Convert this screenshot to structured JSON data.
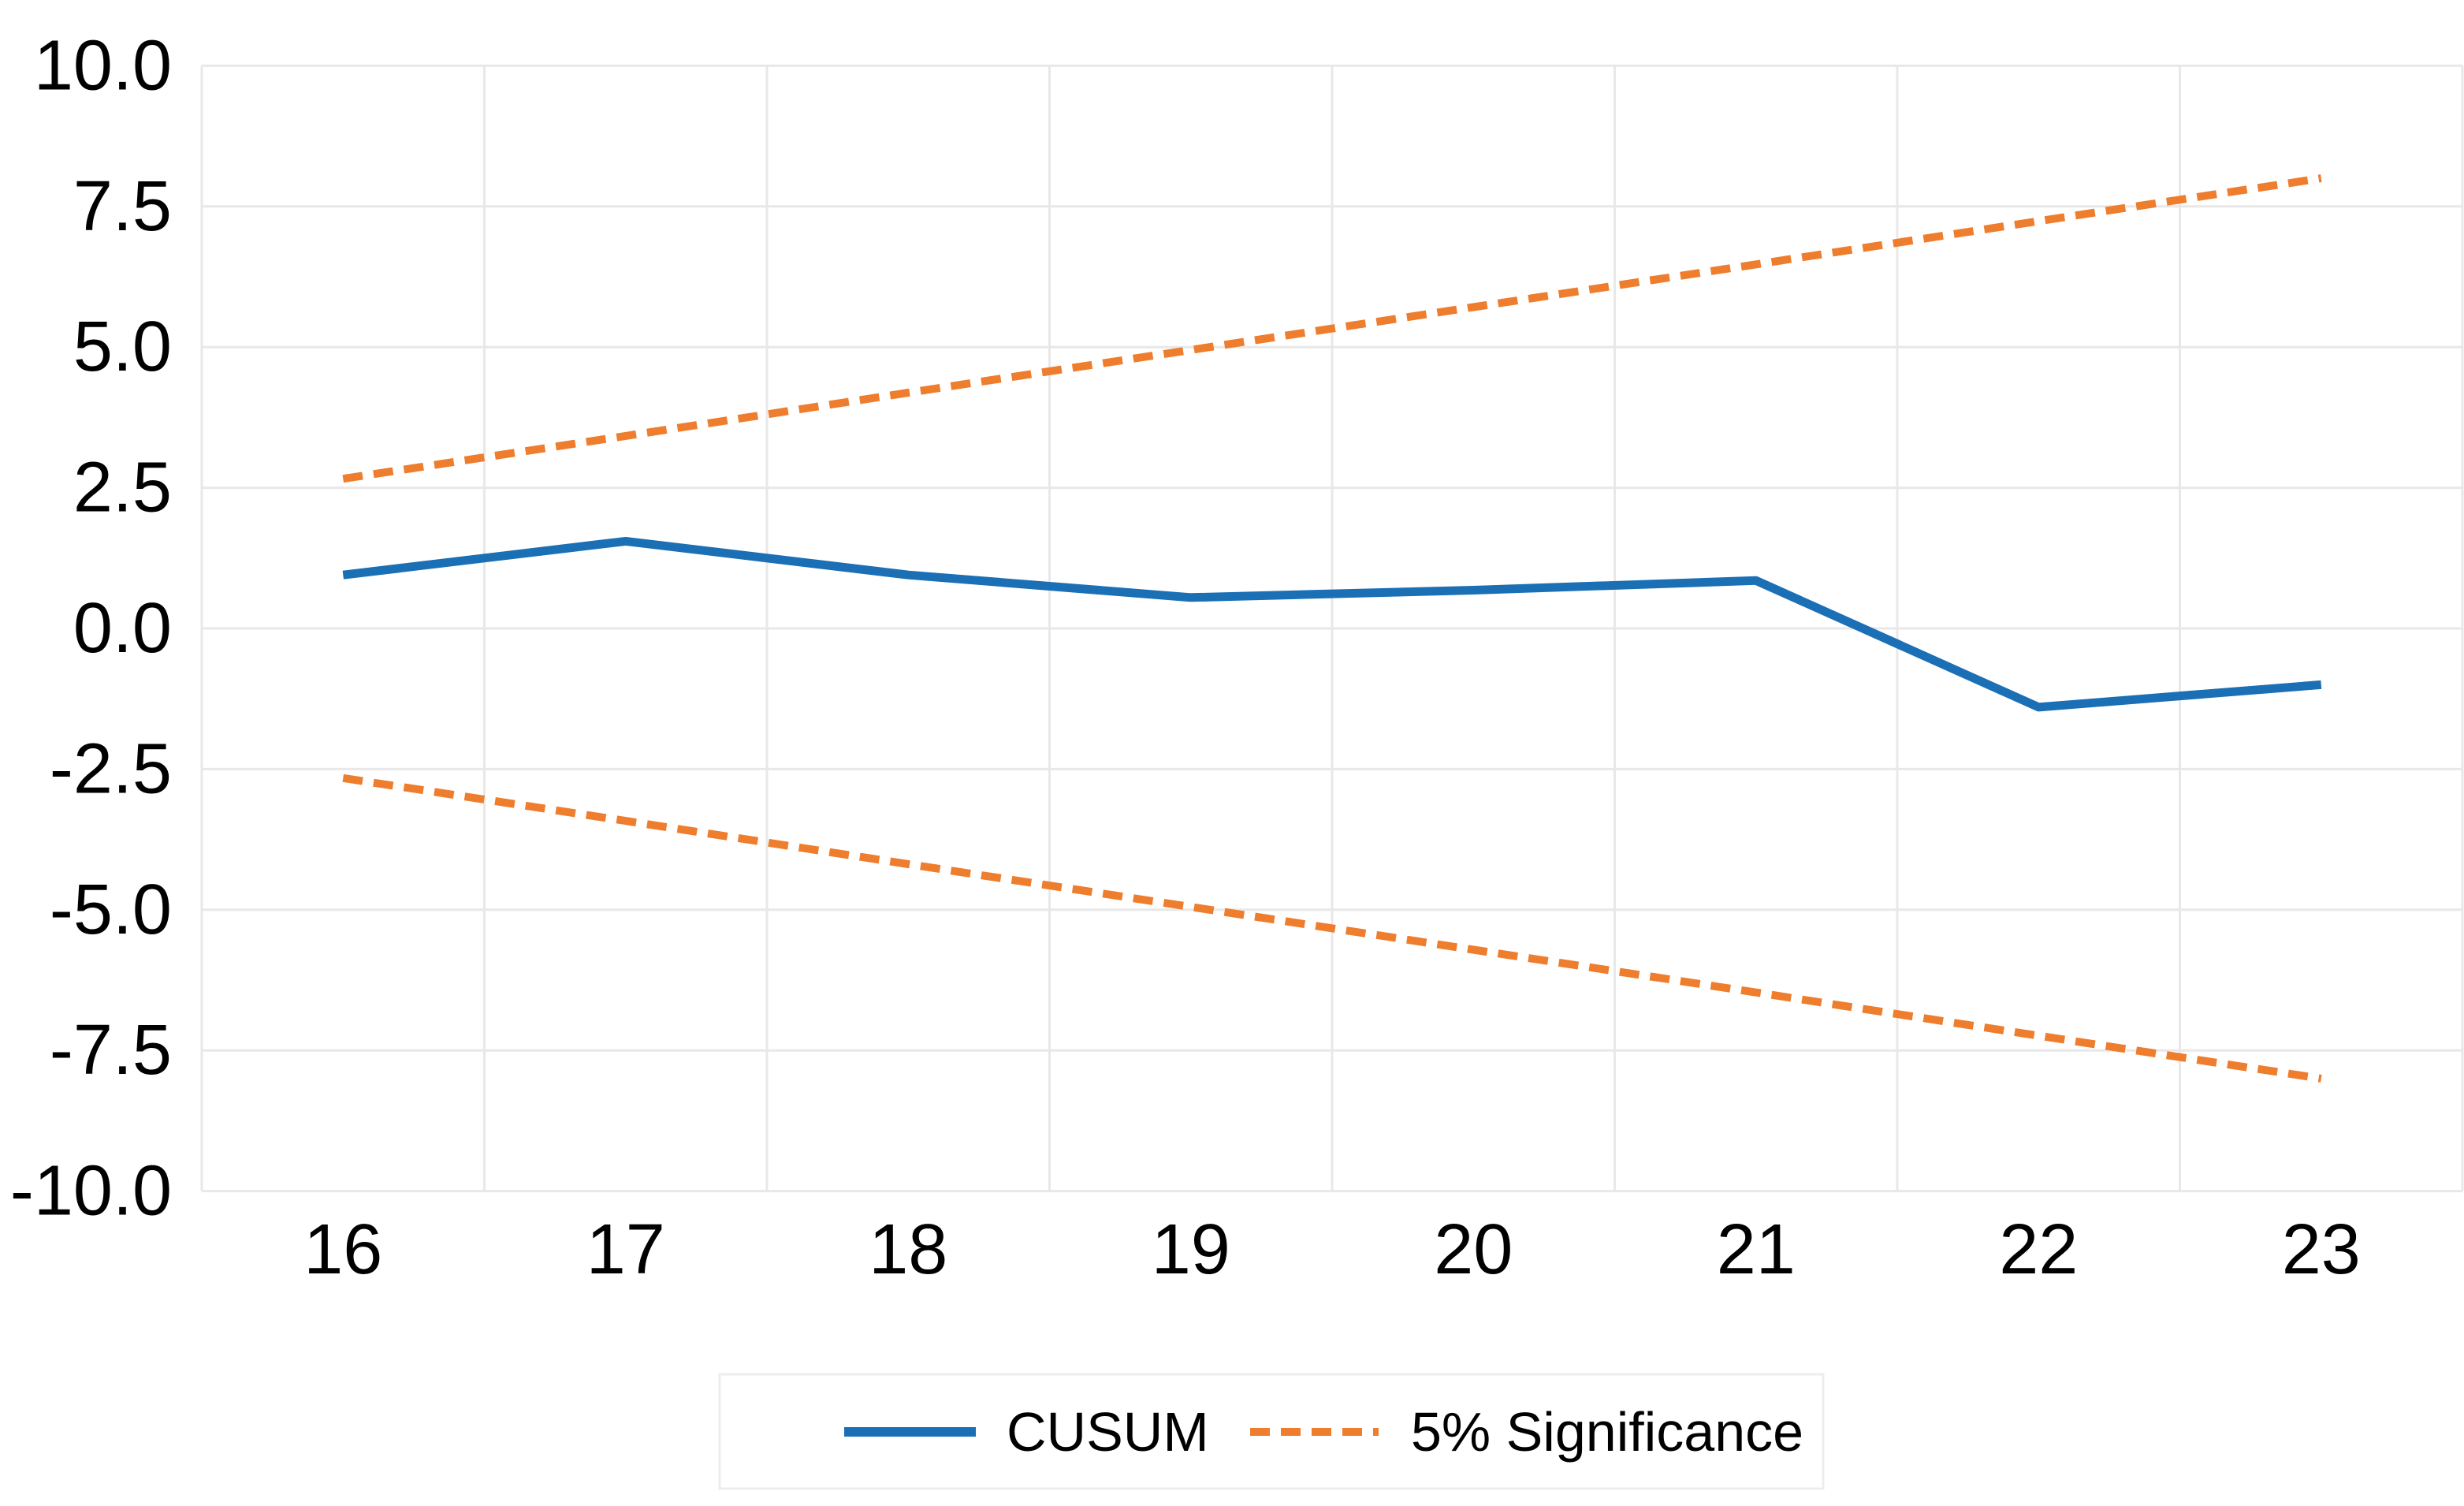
{
  "chart_data": {
    "type": "line",
    "title": "",
    "xlabel": "",
    "ylabel": "",
    "x": [
      16,
      17,
      18,
      19,
      20,
      21,
      22,
      23
    ],
    "x_tick_labels": [
      "16",
      "17",
      "18",
      "19",
      "20",
      "21",
      "22",
      "23"
    ],
    "y_ticks": [
      10.0,
      7.5,
      5.0,
      2.5,
      0.0,
      -2.5,
      -5.0,
      -7.5,
      -10.0
    ],
    "y_tick_labels": [
      "10.0",
      "7.5",
      "5.0",
      "2.5",
      "0.0",
      "-2.5",
      "-5.0",
      "-7.5",
      "-10.0"
    ],
    "ylim": [
      -10,
      10
    ],
    "grid": true,
    "legend_position": "bottom-center",
    "series": [
      {
        "name": "CUSUM",
        "style": "solid",
        "color": "#1b6fb5",
        "values": [
          0.95,
          1.55,
          0.95,
          0.55,
          0.68,
          0.85,
          -1.4,
          -1.0
        ]
      },
      {
        "name": "5% Significance",
        "style": "dashed",
        "color": "#ee7d2e",
        "values": [
          2.66,
          3.42,
          4.19,
          4.95,
          5.71,
          6.47,
          7.24,
          8.0
        ]
      },
      {
        "name": "5% Significance",
        "style": "dashed",
        "color": "#ee7d2e",
        "values": [
          -2.66,
          -3.42,
          -4.19,
          -4.95,
          -5.71,
          -6.47,
          -7.24,
          -8.0
        ]
      }
    ]
  },
  "legend": {
    "items": [
      {
        "label": "CUSUM",
        "style": "solid",
        "color": "#1b6fb5"
      },
      {
        "label": "5% Significance",
        "style": "dashed",
        "color": "#ee7d2e"
      }
    ]
  },
  "colors": {
    "cusum_line": "#1b6fb5",
    "significance_line": "#ee7d2e",
    "gridline": "#e8e8e8",
    "text": "#000000",
    "legend_border": "#ededed",
    "background": "#ffffff"
  }
}
